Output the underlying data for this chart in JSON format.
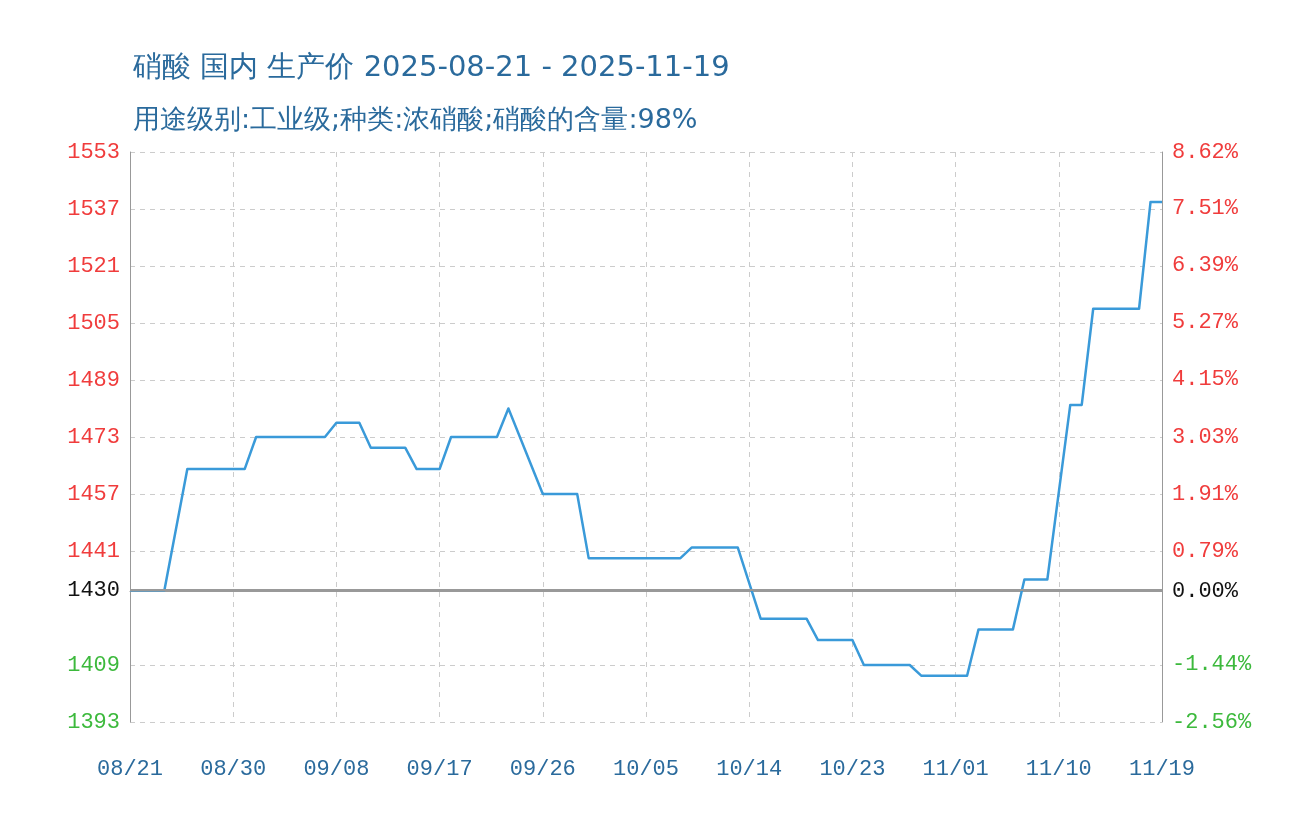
{
  "chart_data": {
    "type": "line",
    "title": "硝酸 国内 生产价 2025-08-21 - 2025-11-19",
    "subtitle": "用途级别:工业级;种类:浓硝酸;硝酸的含量:98%",
    "x": [
      "2025-08-21",
      "2025-08-24",
      "2025-08-26",
      "2025-08-31",
      "2025-09-01",
      "2025-09-07",
      "2025-09-08",
      "2025-09-10",
      "2025-09-11",
      "2025-09-14",
      "2025-09-15",
      "2025-09-17",
      "2025-09-18",
      "2025-09-22",
      "2025-09-23",
      "2025-09-26",
      "2025-09-29",
      "2025-09-30",
      "2025-10-08",
      "2025-10-09",
      "2025-10-13",
      "2025-10-15",
      "2025-10-19",
      "2025-10-20",
      "2025-10-23",
      "2025-10-24",
      "2025-10-28",
      "2025-10-29",
      "2025-11-02",
      "2025-11-03",
      "2025-11-06",
      "2025-11-07",
      "2025-11-09",
      "2025-11-11",
      "2025-11-12",
      "2025-11-13",
      "2025-11-17",
      "2025-11-18",
      "2025-11-19"
    ],
    "series": [
      {
        "color": "#3a9ad9",
        "values": [
          1430,
          1430,
          1464,
          1464,
          1473,
          1473,
          1477,
          1477,
          1470,
          1470,
          1464,
          1464,
          1473,
          1473,
          1481,
          1457,
          1457,
          1439,
          1439,
          1442,
          1442,
          1422,
          1422,
          1416,
          1416,
          1409,
          1409,
          1406,
          1406,
          1419,
          1419,
          1433,
          1433,
          1482,
          1482,
          1509,
          1509,
          1539,
          1539
        ]
      }
    ],
    "xlim": [
      "2025-08-21",
      "2025-11-19"
    ],
    "xticks": [
      {
        "value": "2025-08-21",
        "label": "08/21"
      },
      {
        "value": "2025-08-30",
        "label": "08/30"
      },
      {
        "value": "2025-09-08",
        "label": "09/08"
      },
      {
        "value": "2025-09-17",
        "label": "09/17"
      },
      {
        "value": "2025-09-26",
        "label": "09/26"
      },
      {
        "value": "2025-10-05",
        "label": "10/05"
      },
      {
        "value": "2025-10-14",
        "label": "10/14"
      },
      {
        "value": "2025-10-23",
        "label": "10/23"
      },
      {
        "value": "2025-11-01",
        "label": "11/01"
      },
      {
        "value": "2025-11-10",
        "label": "11/10"
      },
      {
        "value": "2025-11-19",
        "label": "11/19"
      }
    ],
    "ylim": [
      1393,
      1553
    ],
    "yticks": [
      1393,
      1409,
      1430,
      1441,
      1457,
      1473,
      1489,
      1505,
      1521,
      1537,
      1553
    ],
    "y2lim": [
      -2.56,
      8.62
    ],
    "y2ticks": [
      {
        "value": -2.56,
        "label": "-2.56%"
      },
      {
        "value": -1.44,
        "label": "-1.44%"
      },
      {
        "value": 0,
        "label": "0.00%"
      },
      {
        "value": 0.79,
        "label": "0.79%"
      },
      {
        "value": 1.91,
        "label": "1.91%"
      },
      {
        "value": 3.03,
        "label": "3.03%"
      },
      {
        "value": 4.15,
        "label": "4.15%"
      },
      {
        "value": 5.27,
        "label": "5.27%"
      },
      {
        "value": 6.39,
        "label": "6.39%"
      },
      {
        "value": 7.51,
        "label": "7.51%"
      },
      {
        "value": 8.62,
        "label": "8.62%"
      }
    ],
    "ref_lines": [
      {
        "axis": "y",
        "value": 1430,
        "color": "#999999"
      }
    ],
    "grid": true,
    "marker": "none",
    "line_style": "solid"
  }
}
